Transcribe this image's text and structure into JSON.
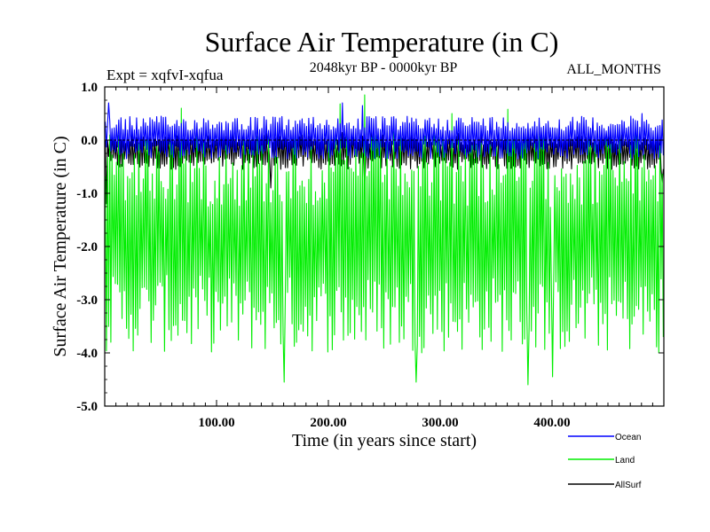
{
  "header": {
    "title": "Surface Air Temperature (in C)",
    "expt": "Expt = xqfvI-xqfua",
    "period": "2048kyr BP - 0000kyr BP",
    "months": "ALL_MONTHS"
  },
  "chart_data": {
    "type": "line",
    "title": "Surface Air Temperature (in C)",
    "xlabel": "Time (in years since start)",
    "ylabel": "Surface Air Temperature (in C)",
    "xlim": [
      0,
      500
    ],
    "ylim": [
      -5.0,
      1.0
    ],
    "x_ticks": [
      100,
      200,
      300,
      400
    ],
    "x_tick_labels": [
      "100.00",
      "200.00",
      "300.00",
      "400.00"
    ],
    "y_ticks": [
      1.0,
      0.0,
      -1.0,
      -2.0,
      -3.0,
      -4.0,
      -5.0
    ],
    "y_tick_labels": [
      "1.0",
      "0.0",
      "-1.0",
      "-2.0",
      "-3.0",
      "-4.0",
      "-5.0"
    ],
    "reference_line_y": 0.0,
    "legend_position": "bottom-right",
    "series": [
      {
        "name": "Ocean",
        "color": "#0000ff",
        "n_points": 500,
        "envelope_upper": 0.45,
        "envelope_lower": -0.35,
        "peaks": [
          {
            "x": 3,
            "y": 0.7
          },
          {
            "x": 212,
            "y": 0.7
          },
          {
            "x": 230,
            "y": 0.65
          },
          {
            "x": 480,
            "y": 0.5
          }
        ]
      },
      {
        "name": "Land",
        "color": "#00ee00",
        "n_points": 500,
        "envelope_upper": 0.2,
        "envelope_lower": -4.0,
        "peaks": [
          {
            "x": 68,
            "y": 0.6
          },
          {
            "x": 210,
            "y": 0.68
          },
          {
            "x": 232,
            "y": 0.85
          },
          {
            "x": 310,
            "y": 0.5
          },
          {
            "x": 360,
            "y": 0.58
          }
        ],
        "troughs": [
          {
            "x": 160,
            "y": -4.55
          },
          {
            "x": 278,
            "y": -4.55
          },
          {
            "x": 378,
            "y": -4.6
          },
          {
            "x": 400,
            "y": -4.45
          },
          {
            "x": 495,
            "y": -4.0
          }
        ]
      },
      {
        "name": "AllSurf",
        "color": "#000000",
        "n_points": 500,
        "envelope_upper": 0.15,
        "envelope_lower": -0.55,
        "troughs": [
          {
            "x": 1,
            "y": -1.2
          },
          {
            "x": 148,
            "y": -0.9
          },
          {
            "x": 232,
            "y": -0.85
          },
          {
            "x": 498,
            "y": -0.8
          }
        ]
      }
    ]
  }
}
